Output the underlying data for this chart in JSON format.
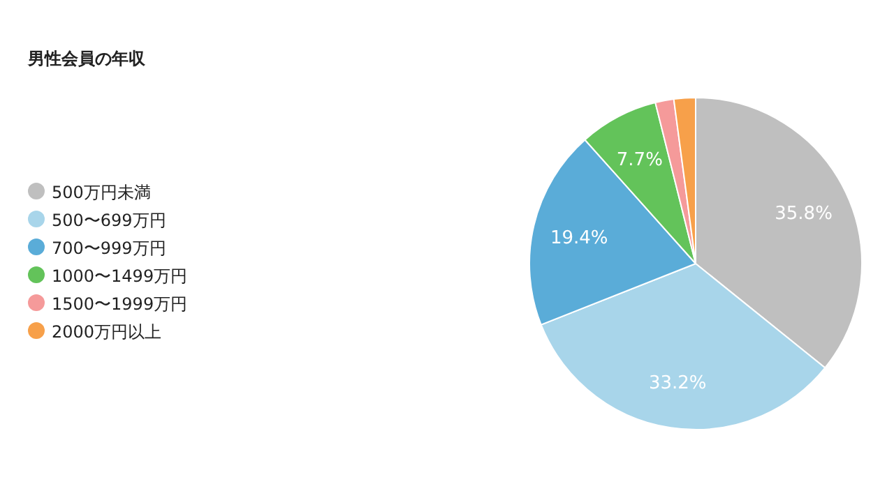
{
  "chart_data": {
    "type": "pie",
    "title": "男性会員の年収",
    "categories": [
      "500万円未満",
      "500〜699万円",
      "700〜999万円",
      "1000〜1499万円",
      "1500〜1999万円",
      "2000万円以上"
    ],
    "values": [
      35.8,
      33.2,
      19.4,
      7.7,
      1.8,
      2.1
    ],
    "value_labels": [
      "35.8%",
      "33.2%",
      "19.4%",
      "7.7%",
      null,
      null
    ],
    "colors": [
      "#bfbfbf",
      "#a8d5ea",
      "#5aacd8",
      "#63c35a",
      "#f59a9a",
      "#f7a04a"
    ],
    "legend": "left"
  }
}
